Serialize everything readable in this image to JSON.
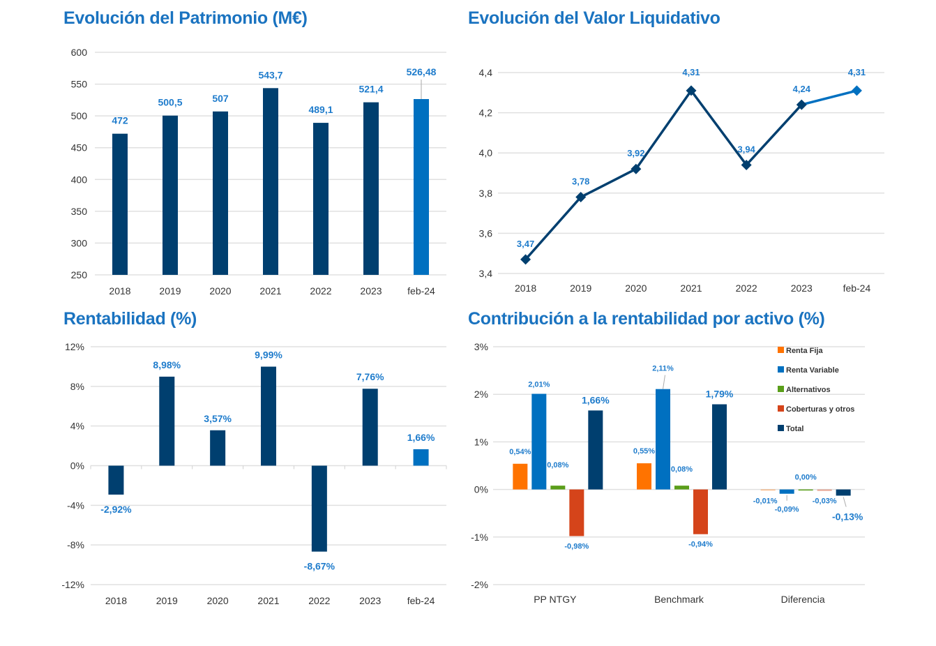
{
  "colors": {
    "title": "#1a73c0",
    "dark_bar": "#003f6f",
    "light_bar": "#0070c0",
    "label": "#1f7ccc",
    "grid": "#e0e0e0",
    "renta_fija": "#ff7300",
    "renta_variable": "#0070c0",
    "alternativos": "#5a9e1a",
    "coberturas": "#d5441a",
    "total": "#003f6f"
  },
  "chart_data": [
    {
      "id": "patrimonio",
      "type": "bar",
      "title": "Evolución del Patrimonio (M€)",
      "categories": [
        "2018",
        "2019",
        "2020",
        "2021",
        "2022",
        "2023",
        "feb-24"
      ],
      "values": [
        472,
        500.5,
        507,
        543.7,
        489.1,
        521.4,
        526.48
      ],
      "labels": [
        "472",
        "500,5",
        "507",
        "543,7",
        "489,1",
        "521,4",
        "526,48"
      ],
      "highlight_last": true,
      "ylim": [
        250,
        600
      ],
      "yticks": [
        250,
        300,
        350,
        400,
        450,
        500,
        550,
        600
      ],
      "ytick_labels": [
        "250",
        "300",
        "350",
        "400",
        "450",
        "500",
        "550",
        "600"
      ],
      "grid": true,
      "xlabel": "",
      "ylabel": ""
    },
    {
      "id": "valor_liquidativo",
      "type": "line",
      "title": "Evolución del Valor Liquidativo",
      "categories": [
        "2018",
        "2019",
        "2020",
        "2021",
        "2022",
        "2023",
        "feb-24"
      ],
      "values": [
        3.47,
        3.78,
        3.92,
        4.31,
        3.94,
        4.24,
        4.31
      ],
      "labels": [
        "3,47",
        "3,78",
        "3,92",
        "4,31",
        "3,94",
        "4,24",
        "4,31"
      ],
      "highlight_last": true,
      "marker": "diamond",
      "ylim": [
        3.4,
        4.4
      ],
      "yticks": [
        3.4,
        3.6,
        3.8,
        4.0,
        4.2,
        4.4
      ],
      "ytick_labels": [
        "3,4",
        "3,6",
        "3,8",
        "4,0",
        "4,2",
        "4,4"
      ],
      "grid": true,
      "xlabel": "",
      "ylabel": ""
    },
    {
      "id": "rentabilidad",
      "type": "bar",
      "title": "Rentabilidad (%)",
      "categories": [
        "2018",
        "2019",
        "2020",
        "2021",
        "2022",
        "2023",
        "feb-24"
      ],
      "values": [
        -2.92,
        8.98,
        3.57,
        9.99,
        -8.67,
        7.76,
        1.66
      ],
      "labels": [
        "-2,92%",
        "8,98%",
        "3,57%",
        "9,99%",
        "-8,67%",
        "7,76%",
        "1,66%"
      ],
      "highlight_last": true,
      "ylim": [
        -12,
        12
      ],
      "yticks": [
        -12,
        -8,
        -4,
        0,
        4,
        8,
        12
      ],
      "ytick_labels": [
        "-12%",
        "-8%",
        "-4%",
        "0%",
        "4%",
        "8%",
        "12%"
      ],
      "grid": true,
      "xlabel": "",
      "ylabel": ""
    },
    {
      "id": "contribucion",
      "type": "bar",
      "title": "Contribución a la rentabilidad por activo (%)",
      "categories": [
        "PP NTGY",
        "Benchmark",
        "Diferencia"
      ],
      "series": [
        {
          "name": "Renta Fija",
          "color_key": "renta_fija",
          "values": [
            0.54,
            0.55,
            -0.01
          ],
          "labels": [
            "0,54%",
            "0,55%",
            "-0,01%"
          ]
        },
        {
          "name": "Renta Variable",
          "color_key": "renta_variable",
          "values": [
            2.01,
            2.11,
            -0.09
          ],
          "labels": [
            "2,01%",
            "2,11%",
            "-0,09%"
          ]
        },
        {
          "name": "Alternativos",
          "color_key": "alternativos",
          "values": [
            0.08,
            0.08,
            0.0
          ],
          "labels": [
            "0,08%",
            "0,08%",
            "0,00%"
          ]
        },
        {
          "name": "Coberturas y otros",
          "color_key": "coberturas",
          "values": [
            -0.98,
            -0.94,
            -0.03
          ],
          "labels": [
            "-0,98%",
            "-0,94%",
            "-0,03%"
          ]
        },
        {
          "name": "Total",
          "color_key": "total",
          "values": [
            1.66,
            1.79,
            -0.13
          ],
          "labels": [
            "1,66%",
            "1,79%",
            "-0,13%"
          ]
        }
      ],
      "ylim": [
        -2,
        3
      ],
      "yticks": [
        -2,
        -1,
        0,
        1,
        2,
        3
      ],
      "ytick_labels": [
        "-2%",
        "-1%",
        "0%",
        "1%",
        "2%",
        "3%"
      ],
      "legend_position": "top-right",
      "grid": true,
      "xlabel": "",
      "ylabel": ""
    }
  ]
}
